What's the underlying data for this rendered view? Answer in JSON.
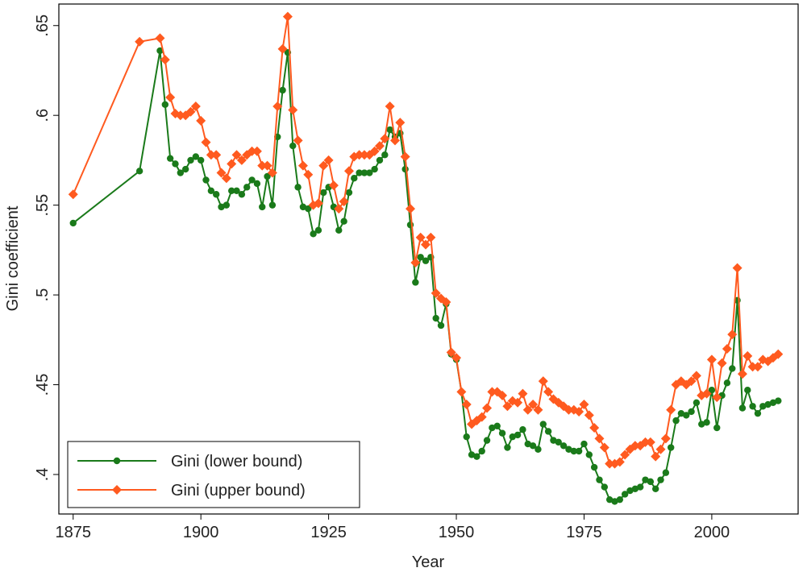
{
  "chart_data": {
    "type": "line",
    "x_label": "Year",
    "y_label": "Gini coefficient",
    "x": [
      1875,
      1888,
      1892,
      1893,
      1894,
      1895,
      1896,
      1897,
      1898,
      1899,
      1900,
      1901,
      1902,
      1903,
      1904,
      1905,
      1906,
      1907,
      1908,
      1909,
      1910,
      1911,
      1912,
      1913,
      1914,
      1915,
      1916,
      1917,
      1918,
      1919,
      1920,
      1921,
      1922,
      1923,
      1924,
      1925,
      1926,
      1927,
      1928,
      1929,
      1930,
      1931,
      1932,
      1933,
      1934,
      1935,
      1936,
      1937,
      1938,
      1939,
      1940,
      1941,
      1942,
      1943,
      1944,
      1945,
      1946,
      1947,
      1948,
      1949,
      1950,
      1951,
      1952,
      1953,
      1954,
      1955,
      1956,
      1957,
      1958,
      1959,
      1960,
      1961,
      1962,
      1963,
      1964,
      1965,
      1966,
      1967,
      1968,
      1969,
      1970,
      1971,
      1972,
      1973,
      1974,
      1975,
      1976,
      1977,
      1978,
      1979,
      1980,
      1981,
      1982,
      1983,
      1984,
      1985,
      1986,
      1987,
      1988,
      1989,
      1990,
      1991,
      1992,
      1993,
      1994,
      1995,
      1996,
      1997,
      1998,
      1999,
      2000,
      2001,
      2002,
      2003,
      2004,
      2005,
      2006,
      2007,
      2008,
      2009,
      2010,
      2011,
      2012,
      2013
    ],
    "series": [
      {
        "name": "Gini (lower bound)",
        "color": "#1a7a1a",
        "marker": "circle",
        "values": [
          0.54,
          0.569,
          0.636,
          0.606,
          0.576,
          0.573,
          0.568,
          0.57,
          0.575,
          0.577,
          0.575,
          0.564,
          0.558,
          0.556,
          0.549,
          0.55,
          0.558,
          0.558,
          0.556,
          0.56,
          0.564,
          0.562,
          0.549,
          0.566,
          0.55,
          0.588,
          0.614,
          0.635,
          0.583,
          0.56,
          0.549,
          0.548,
          0.534,
          0.536,
          0.557,
          0.56,
          0.549,
          0.536,
          0.541,
          0.557,
          0.565,
          0.568,
          0.568,
          0.568,
          0.57,
          0.575,
          0.578,
          0.592,
          0.588,
          0.59,
          0.57,
          0.539,
          0.507,
          0.521,
          0.519,
          0.521,
          0.487,
          0.483,
          0.495,
          0.467,
          0.464,
          0.446,
          0.421,
          0.411,
          0.41,
          0.413,
          0.419,
          0.426,
          0.427,
          0.423,
          0.415,
          0.421,
          0.422,
          0.425,
          0.417,
          0.416,
          0.414,
          0.428,
          0.424,
          0.419,
          0.418,
          0.416,
          0.414,
          0.413,
          0.413,
          0.417,
          0.411,
          0.404,
          0.397,
          0.393,
          0.386,
          0.385,
          0.386,
          0.389,
          0.391,
          0.392,
          0.393,
          0.397,
          0.396,
          0.392,
          0.397,
          0.401,
          0.415,
          0.43,
          0.434,
          0.433,
          0.435,
          0.44,
          0.428,
          0.429,
          0.447,
          0.426,
          0.444,
          0.451,
          0.459,
          0.497,
          0.437,
          0.447,
          0.438,
          0.434,
          0.438,
          0.439,
          0.44,
          0.441
        ]
      },
      {
        "name": "Gini (upper bound)",
        "color": "#ff5a1f",
        "marker": "diamond",
        "values": [
          0.556,
          0.641,
          0.643,
          0.631,
          0.61,
          0.601,
          0.6,
          0.6,
          0.602,
          0.605,
          0.597,
          0.585,
          0.578,
          0.578,
          0.568,
          0.565,
          0.573,
          0.578,
          0.575,
          0.578,
          0.58,
          0.58,
          0.572,
          0.572,
          0.568,
          0.605,
          0.637,
          0.655,
          0.603,
          0.586,
          0.572,
          0.567,
          0.55,
          0.551,
          0.572,
          0.575,
          0.561,
          0.548,
          0.552,
          0.569,
          0.577,
          0.578,
          0.578,
          0.578,
          0.58,
          0.583,
          0.587,
          0.605,
          0.586,
          0.596,
          0.577,
          0.548,
          0.518,
          0.532,
          0.528,
          0.532,
          0.501,
          0.498,
          0.496,
          0.468,
          0.465,
          0.446,
          0.439,
          0.428,
          0.43,
          0.432,
          0.437,
          0.446,
          0.446,
          0.444,
          0.438,
          0.441,
          0.44,
          0.445,
          0.436,
          0.439,
          0.436,
          0.452,
          0.446,
          0.442,
          0.44,
          0.438,
          0.436,
          0.436,
          0.435,
          0.439,
          0.433,
          0.426,
          0.42,
          0.415,
          0.406,
          0.406,
          0.407,
          0.411,
          0.414,
          0.416,
          0.416,
          0.418,
          0.418,
          0.41,
          0.414,
          0.42,
          0.436,
          0.45,
          0.452,
          0.45,
          0.452,
          0.455,
          0.444,
          0.445,
          0.464,
          0.443,
          0.462,
          0.47,
          0.478,
          0.515,
          0.456,
          0.466,
          0.46,
          0.46,
          0.464,
          0.463,
          0.465,
          0.467
        ]
      }
    ],
    "xlim": [
      1872.2,
      2016.9
    ],
    "ylim": [
      0.378,
      0.662
    ],
    "xticks": [
      1875,
      1900,
      1925,
      1950,
      1975,
      2000
    ],
    "yticks": [
      {
        "value": 0.4,
        "label": ".4"
      },
      {
        "value": 0.45,
        "label": ".45"
      },
      {
        "value": 0.5,
        "label": ".5"
      },
      {
        "value": 0.55,
        "label": ".55"
      },
      {
        "value": 0.6,
        "label": ".6"
      },
      {
        "value": 0.65,
        "label": ".65"
      }
    ],
    "legend": "bottom-left"
  }
}
